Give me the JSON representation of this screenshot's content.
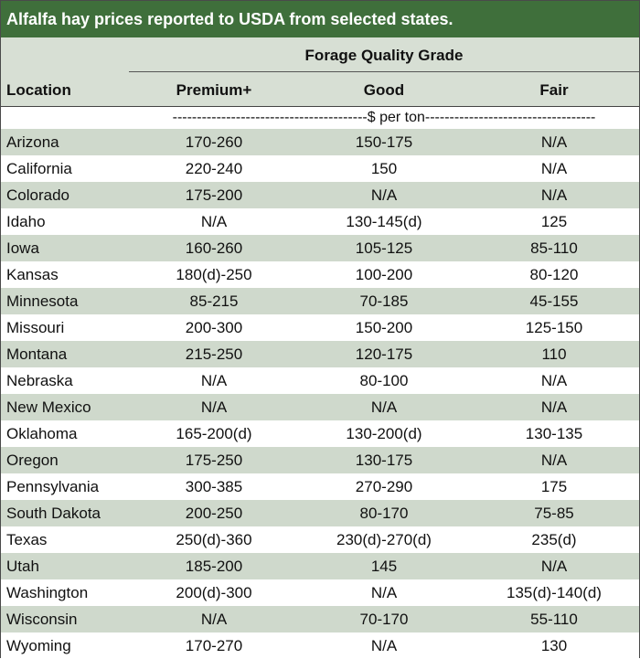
{
  "title": "Alfalfa hay prices reported to USDA from selected states.",
  "header": {
    "group_label": "Forage Quality Grade",
    "location_label": "Location",
    "columns": [
      "Premium+",
      "Good",
      "Fair"
    ]
  },
  "units": "----------------------------------------$ per ton-----------------------------------",
  "rows": [
    {
      "location": "Arizona",
      "premium": "170-260",
      "good": "150-175",
      "fair": "N/A"
    },
    {
      "location": "California",
      "premium": "220-240",
      "good": "150",
      "fair": "N/A"
    },
    {
      "location": "Colorado",
      "premium": "175-200",
      "good": "N/A",
      "fair": "N/A"
    },
    {
      "location": "Idaho",
      "premium": "N/A",
      "good": "130-145(d)",
      "fair": "125"
    },
    {
      "location": "Iowa",
      "premium": "160-260",
      "good": "105-125",
      "fair": "85-110"
    },
    {
      "location": "Kansas",
      "premium": "180(d)-250",
      "good": "100-200",
      "fair": "80-120"
    },
    {
      "location": "Minnesota",
      "premium": "85-215",
      "good": "70-185",
      "fair": "45-155"
    },
    {
      "location": "Missouri",
      "premium": "200-300",
      "good": "150-200",
      "fair": "125-150"
    },
    {
      "location": "Montana",
      "premium": "215-250",
      "good": "120-175",
      "fair": "110"
    },
    {
      "location": "Nebraska",
      "premium": "N/A",
      "good": "80-100",
      "fair": "N/A"
    },
    {
      "location": "New Mexico",
      "premium": "N/A",
      "good": "N/A",
      "fair": "N/A"
    },
    {
      "location": "Oklahoma",
      "premium": "165-200(d)",
      "good": "130-200(d)",
      "fair": "130-135"
    },
    {
      "location": "Oregon",
      "premium": "175-250",
      "good": "130-175",
      "fair": "N/A"
    },
    {
      "location": "Pennsylvania",
      "premium": "300-385",
      "good": "270-290",
      "fair": "175"
    },
    {
      "location": "South Dakota",
      "premium": "200-250",
      "good": "80-170",
      "fair": "75-85"
    },
    {
      "location": "Texas",
      "premium": "250(d)-360",
      "good": "230(d)-270(d)",
      "fair": "235(d)"
    },
    {
      "location": "Utah",
      "premium": "185-200",
      "good": "145",
      "fair": "N/A"
    },
    {
      "location": "Washington",
      "premium": "200(d)-300",
      "good": "N/A",
      "fair": "135(d)-140(d)"
    },
    {
      "location": "Wisconsin",
      "premium": "N/A",
      "good": "70-170",
      "fair": "55-110"
    },
    {
      "location": "Wyoming",
      "premium": "170-270",
      "good": "N/A",
      "fair": "130"
    }
  ],
  "colors": {
    "title_bg": "#3f6f3b",
    "header_bg": "#d7dfd4",
    "band_bg": "#cfd9cc"
  }
}
